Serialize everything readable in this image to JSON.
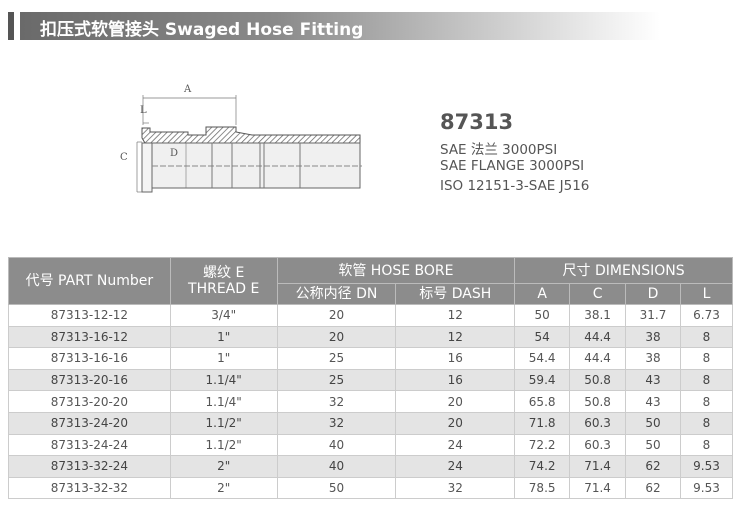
{
  "title": "扣压式软管接头  Swaged Hose Fitting",
  "product": {
    "model": "87313",
    "specs": [
      "SAE 法兰 3000PSI",
      "SAE FLANGE 3000PSI",
      "ISO 12151-3-SAE J516"
    ]
  },
  "drawing_labels": {
    "a": "A",
    "l": "L",
    "c": "C",
    "d": "D"
  },
  "table": {
    "headers": {
      "part": "代号 PART Number",
      "thread_1": "螺纹 E",
      "thread_2": "THREAD E",
      "hose_bore": "软管 HOSE BORE",
      "dn": "公称内径 DN",
      "dash": "标号 DASH",
      "dimensions": "尺寸 DIMENSIONS",
      "a": "A",
      "c": "C",
      "d": "D",
      "l": "L"
    },
    "rows": [
      [
        "87313-12-12",
        "3/4\"",
        "20",
        "12",
        "50",
        "38.1",
        "31.7",
        "6.73"
      ],
      [
        "87313-16-12",
        "1\"",
        "20",
        "12",
        "54",
        "44.4",
        "38",
        "8"
      ],
      [
        "87313-16-16",
        "1\"",
        "25",
        "16",
        "54.4",
        "44.4",
        "38",
        "8"
      ],
      [
        "87313-20-16",
        "1.1/4\"",
        "25",
        "16",
        "59.4",
        "50.8",
        "43",
        "8"
      ],
      [
        "87313-20-20",
        "1.1/4\"",
        "32",
        "20",
        "65.8",
        "50.8",
        "43",
        "8"
      ],
      [
        "87313-24-20",
        "1.1/2\"",
        "32",
        "20",
        "71.8",
        "60.3",
        "50",
        "8"
      ],
      [
        "87313-24-24",
        "1.1/2\"",
        "40",
        "24",
        "72.2",
        "60.3",
        "50",
        "8"
      ],
      [
        "87313-32-24",
        "2\"",
        "40",
        "24",
        "74.2",
        "71.4",
        "62",
        "9.53"
      ],
      [
        "87313-32-32",
        "2\"",
        "50",
        "32",
        "78.5",
        "71.4",
        "62",
        "9.53"
      ]
    ]
  }
}
